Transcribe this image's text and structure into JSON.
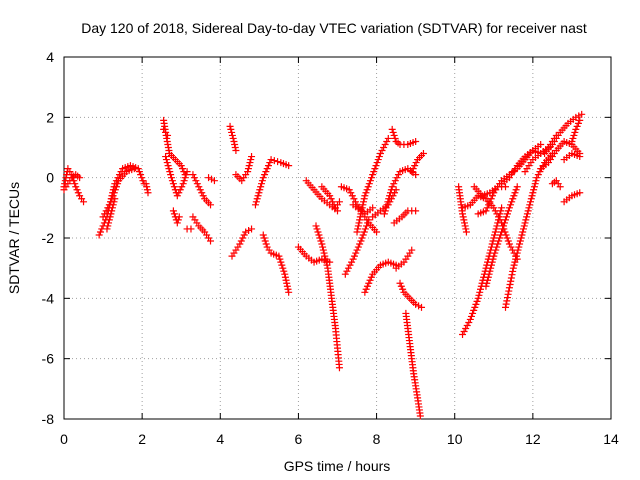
{
  "chart_data": {
    "type": "scatter",
    "title": "Day 120 of 2018, Sidereal Day-to-day VTEC variation (SDTVAR) for receiver nast",
    "xlabel": "GPS time / hours",
    "ylabel": "SDTVAR / TECUs",
    "xlim": [
      0,
      14
    ],
    "ylim": [
      -8,
      4
    ],
    "xticks": [
      "0",
      "2",
      "4",
      "6",
      "8",
      "10",
      "12",
      "14"
    ],
    "yticks": [
      "-8",
      "-6",
      "-4",
      "-2",
      "0",
      "2",
      "4"
    ],
    "xtick_values": [
      0,
      2,
      4,
      6,
      8,
      10,
      12,
      14
    ],
    "ytick_values": [
      -8,
      -6,
      -4,
      -2,
      0,
      2,
      4
    ],
    "grid": true,
    "marker": "+",
    "color": "#ff0000",
    "segments": [
      {
        "x": [
          0.0,
          0.1,
          0.2,
          0.3,
          0.4,
          0.5
        ],
        "y": [
          -0.3,
          0.3,
          0.1,
          -0.3,
          -0.6,
          -0.8
        ]
      },
      {
        "x": [
          0.0,
          0.1,
          0.2,
          0.3,
          0.4
        ],
        "y": [
          -0.4,
          -0.2,
          0.0,
          0.1,
          0.0
        ]
      },
      {
        "x": [
          0.9,
          1.1,
          1.3,
          1.5,
          1.7,
          1.9,
          2.05
        ],
        "y": [
          -1.9,
          -1.3,
          -0.2,
          0.3,
          0.4,
          0.3,
          -0.2
        ]
      },
      {
        "x": [
          1.0,
          1.2,
          1.4,
          1.6,
          1.8
        ],
        "y": [
          -1.3,
          -0.8,
          -0.1,
          0.2,
          0.3
        ]
      },
      {
        "x": [
          1.1,
          1.2,
          1.3
        ],
        "y": [
          -1.7,
          -1.2,
          -0.7
        ]
      },
      {
        "x": [
          2.1,
          2.15
        ],
        "y": [
          -0.2,
          -0.5
        ]
      },
      {
        "x": [
          2.55,
          2.6,
          2.7,
          2.85,
          3.0,
          3.1
        ],
        "y": [
          1.9,
          1.5,
          0.8,
          0.6,
          0.4,
          0.1
        ]
      },
      {
        "x": [
          2.55,
          2.65
        ],
        "y": [
          1.6,
          1.4
        ]
      },
      {
        "x": [
          2.6,
          2.75,
          2.9,
          3.05,
          3.15
        ],
        "y": [
          0.7,
          0.0,
          -0.6,
          -0.2,
          0.2
        ]
      },
      {
        "x": [
          2.8,
          2.9,
          2.95
        ],
        "y": [
          -1.1,
          -1.5,
          -1.3
        ]
      },
      {
        "x": [
          3.15,
          3.25
        ],
        "y": [
          -1.7,
          -1.7
        ]
      },
      {
        "x": [
          3.3,
          3.45,
          3.6,
          3.75
        ],
        "y": [
          0.1,
          -0.3,
          -0.7,
          -0.9
        ]
      },
      {
        "x": [
          3.3,
          3.45,
          3.6,
          3.75
        ],
        "y": [
          -1.3,
          -1.6,
          -1.8,
          -2.1
        ]
      },
      {
        "x": [
          3.7,
          3.85
        ],
        "y": [
          0.0,
          -0.1
        ]
      },
      {
        "x": [
          4.25,
          4.35,
          4.4
        ],
        "y": [
          1.7,
          1.2,
          0.9
        ]
      },
      {
        "x": [
          4.3,
          4.5,
          4.65,
          4.8
        ],
        "y": [
          -2.6,
          -2.2,
          -1.8,
          -1.7
        ]
      },
      {
        "x": [
          4.4,
          4.55,
          4.7,
          4.8
        ],
        "y": [
          0.1,
          -0.1,
          0.2,
          0.7
        ]
      },
      {
        "x": [
          4.9,
          5.1,
          5.3,
          5.55,
          5.75
        ],
        "y": [
          -0.9,
          0.0,
          0.6,
          0.5,
          0.4
        ]
      },
      {
        "x": [
          5.1,
          5.2,
          5.3,
          5.5,
          5.65,
          5.75
        ],
        "y": [
          -1.9,
          -2.3,
          -2.5,
          -2.6,
          -3.2,
          -3.8
        ]
      },
      {
        "x": [
          6.0,
          6.2,
          6.4,
          6.6,
          6.8
        ],
        "y": [
          -2.3,
          -2.6,
          -2.8,
          -2.7,
          -2.8
        ]
      },
      {
        "x": [
          6.2,
          6.4,
          6.6,
          6.8,
          7.0
        ],
        "y": [
          -0.1,
          -0.4,
          -0.7,
          -0.9,
          -1.1
        ]
      },
      {
        "x": [
          6.45,
          6.6,
          6.75,
          6.85,
          6.95,
          7.05
        ],
        "y": [
          -1.6,
          -2.2,
          -3.0,
          -4.0,
          -5.0,
          -6.3
        ]
      },
      {
        "x": [
          6.6,
          6.8,
          6.95,
          7.05
        ],
        "y": [
          -0.3,
          -0.6,
          -1.0,
          -0.8
        ]
      },
      {
        "x": [
          7.1,
          7.3,
          7.5,
          7.7,
          7.9
        ],
        "y": [
          -0.3,
          -0.4,
          -0.9,
          -1.2,
          -1.0
        ]
      },
      {
        "x": [
          7.2,
          7.4,
          7.6,
          7.8
        ],
        "y": [
          -3.2,
          -2.7,
          -2.1,
          -1.4
        ]
      },
      {
        "x": [
          7.4,
          7.6,
          7.8,
          8.0
        ],
        "y": [
          -0.9,
          -1.1,
          -1.5,
          -1.8
        ]
      },
      {
        "x": [
          7.5,
          7.7,
          7.9,
          8.1,
          8.3
        ],
        "y": [
          -1.8,
          -0.6,
          0.1,
          0.8,
          1.3
        ]
      },
      {
        "x": [
          7.7,
          7.9,
          8.1,
          8.3,
          8.5
        ],
        "y": [
          -3.8,
          -3.2,
          -2.9,
          -2.8,
          -2.9
        ]
      },
      {
        "x": [
          7.9,
          8.1,
          8.3,
          8.5
        ],
        "y": [
          -1.3,
          -1.1,
          -0.9,
          -0.4
        ]
      },
      {
        "x": [
          8.2,
          8.4,
          8.6,
          8.8,
          9.0
        ],
        "y": [
          -1.2,
          -0.3,
          0.2,
          0.3,
          0.1
        ]
      },
      {
        "x": [
          8.4,
          8.5,
          8.6,
          8.8,
          9.0
        ],
        "y": [
          1.6,
          1.2,
          1.1,
          1.1,
          1.2
        ]
      },
      {
        "x": [
          8.45,
          8.65,
          8.8,
          9.0
        ],
        "y": [
          -1.5,
          -1.3,
          -1.1,
          -1.1
        ]
      },
      {
        "x": [
          8.5,
          8.7,
          8.9
        ],
        "y": [
          -3.0,
          -2.8,
          -2.4
        ]
      },
      {
        "x": [
          8.6,
          8.7,
          8.85,
          9.0,
          9.15
        ],
        "y": [
          -3.5,
          -3.8,
          -4.0,
          -4.2,
          -4.3
        ]
      },
      {
        "x": [
          8.75,
          8.85,
          8.95,
          9.05,
          9.12
        ],
        "y": [
          -4.5,
          -5.5,
          -6.5,
          -7.3,
          -7.9
        ]
      },
      {
        "x": [
          8.9,
          9.05,
          9.2
        ],
        "y": [
          0.2,
          0.6,
          0.8
        ]
      },
      {
        "x": [
          10.1,
          10.2,
          10.3
        ],
        "y": [
          -0.3,
          -1.2,
          -1.8
        ]
      },
      {
        "x": [
          10.2,
          10.4,
          10.6,
          10.8,
          11.0,
          11.2,
          11.4,
          11.6
        ],
        "y": [
          -1.0,
          -0.9,
          -0.6,
          -0.7,
          -1.0,
          -1.5,
          -2.2,
          -2.7
        ]
      },
      {
        "x": [
          10.2,
          10.4,
          10.6,
          10.8,
          11.0,
          11.2
        ],
        "y": [
          -5.2,
          -4.7,
          -4.0,
          -3.0,
          -2.0,
          -1.0
        ]
      },
      {
        "x": [
          10.5,
          10.7,
          10.9,
          11.1,
          11.3
        ],
        "y": [
          -0.3,
          -0.6,
          -0.5,
          -0.3,
          -0.3
        ]
      },
      {
        "x": [
          10.6,
          10.8,
          11.0,
          11.2,
          11.4,
          11.6,
          11.8,
          12.0,
          12.2
        ],
        "y": [
          -1.2,
          -1.1,
          -0.5,
          -0.1,
          0.1,
          0.3,
          0.6,
          0.9,
          1.1
        ]
      },
      {
        "x": [
          10.8,
          11.0,
          11.2,
          11.4,
          11.6
        ],
        "y": [
          -3.6,
          -2.6,
          -1.8,
          -1.0,
          -0.3
        ]
      },
      {
        "x": [
          11.2,
          11.4,
          11.6,
          11.8,
          12.0,
          12.2,
          12.4,
          12.6
        ],
        "y": [
          -0.2,
          0.0,
          0.4,
          0.7,
          0.9,
          0.8,
          1.0,
          1.4
        ]
      },
      {
        "x": [
          11.3,
          11.5,
          11.7,
          11.9,
          12.1,
          12.3,
          12.5
        ],
        "y": [
          -4.3,
          -3.0,
          -2.0,
          -1.0,
          0.0,
          0.5,
          0.8
        ]
      },
      {
        "x": [
          11.8,
          12.0,
          12.2,
          12.4
        ],
        "y": [
          0.2,
          0.6,
          0.8,
          1.0
        ]
      },
      {
        "x": [
          12.2,
          12.4,
          12.6,
          12.8,
          13.0,
          13.2
        ],
        "y": [
          0.3,
          0.5,
          0.9,
          1.2,
          1.1,
          0.8
        ]
      },
      {
        "x": [
          12.3,
          12.5,
          12.7,
          12.9,
          13.1,
          13.25
        ],
        "y": [
          0.8,
          1.1,
          1.5,
          1.8,
          2.0,
          2.1
        ]
      },
      {
        "x": [
          12.5,
          12.6,
          12.7
        ],
        "y": [
          -0.2,
          -0.1,
          -0.3
        ]
      },
      {
        "x": [
          12.8,
          13.0,
          13.2
        ],
        "y": [
          0.6,
          0.8,
          0.7
        ]
      },
      {
        "x": [
          12.8,
          13.0,
          13.2
        ],
        "y": [
          -0.8,
          -0.6,
          -0.5
        ]
      },
      {
        "x": [
          13.0,
          13.1,
          13.2
        ],
        "y": [
          1.2,
          1.6,
          1.9
        ]
      }
    ]
  }
}
